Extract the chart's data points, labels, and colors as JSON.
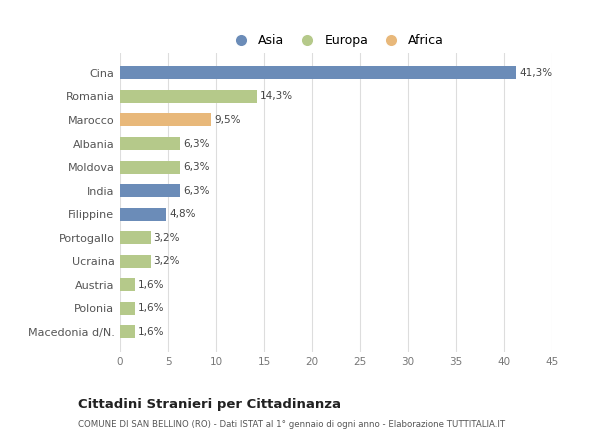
{
  "countries": [
    "Cina",
    "Romania",
    "Marocco",
    "Albania",
    "Moldova",
    "India",
    "Filippine",
    "Portogallo",
    "Ucraina",
    "Austria",
    "Polonia",
    "Macedonia d/N."
  ],
  "values": [
    41.3,
    14.3,
    9.5,
    6.3,
    6.3,
    6.3,
    4.8,
    3.2,
    3.2,
    1.6,
    1.6,
    1.6
  ],
  "labels": [
    "41,3%",
    "14,3%",
    "9,5%",
    "6,3%",
    "6,3%",
    "6,3%",
    "4,8%",
    "3,2%",
    "3,2%",
    "1,6%",
    "1,6%",
    "1,6%"
  ],
  "continents": [
    "Asia",
    "Europa",
    "Africa",
    "Europa",
    "Europa",
    "Asia",
    "Asia",
    "Europa",
    "Europa",
    "Europa",
    "Europa",
    "Europa"
  ],
  "colors": {
    "Asia": "#6b8cb8",
    "Europa": "#b5c98a",
    "Africa": "#e8b87a"
  },
  "legend_order": [
    "Asia",
    "Europa",
    "Africa"
  ],
  "title": "Cittadini Stranieri per Cittadinanza",
  "subtitle": "COMUNE DI SAN BELLINO (RO) - Dati ISTAT al 1° gennaio di ogni anno - Elaborazione TUTTITALIA.IT",
  "xlim": [
    0,
    45
  ],
  "xticks": [
    0,
    5,
    10,
    15,
    20,
    25,
    30,
    35,
    40,
    45
  ],
  "background_color": "#ffffff",
  "grid_color": "#dddddd"
}
